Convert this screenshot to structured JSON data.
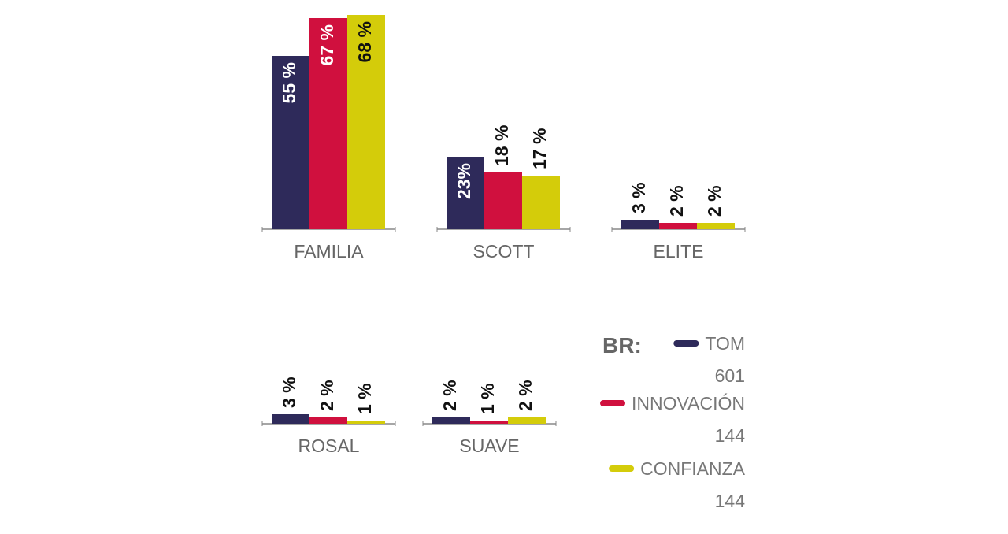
{
  "chart_data": {
    "type": "bar",
    "categories": [
      "FAMILIA",
      "SCOTT",
      "ELITE",
      "ROSAL",
      "SUAVE"
    ],
    "series": [
      {
        "name": "TOM",
        "n": "601",
        "color": "#2e2a5a",
        "values": [
          55,
          23,
          3,
          3,
          2
        ],
        "value_labels": [
          "55 %",
          "23%",
          "3 %",
          "3 %",
          "2 %"
        ]
      },
      {
        "name": "INNOVACIÓN",
        "n": "144",
        "color": "#d0103e",
        "values": [
          67,
          18,
          2,
          2,
          1
        ],
        "value_labels": [
          "67 %",
          "18 %",
          "2 %",
          "2 %",
          "1 %"
        ]
      },
      {
        "name": "CONFIANZA",
        "n": "144",
        "color": "#d4cc0a",
        "values": [
          68,
          17,
          2,
          1,
          2
        ],
        "value_labels": [
          "68 %",
          "17 %",
          "2 %",
          "1 %",
          "2 %"
        ]
      }
    ],
    "legend_title": "BR:"
  }
}
